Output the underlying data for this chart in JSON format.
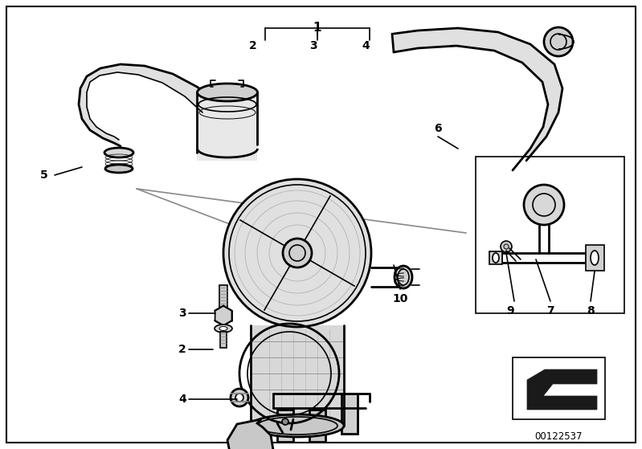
{
  "background_color": "#ffffff",
  "border_color": "#000000",
  "fig_width": 7.99,
  "fig_height": 5.59,
  "dpi": 100,
  "catalog_number": "00122537",
  "line_color": "#000000",
  "gray_light": "#d8d8d8",
  "gray_mid": "#aaaaaa",
  "gray_dark": "#888888"
}
